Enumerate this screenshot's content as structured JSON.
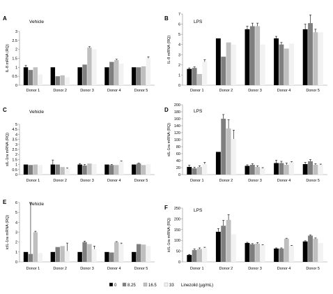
{
  "figure": {
    "legend": {
      "position": "bottom",
      "title": "Linezolid (µg/mL)",
      "entries": [
        {
          "label": "0",
          "color": "#000000"
        },
        {
          "label": "8.25",
          "color": "#7f7f7f"
        },
        {
          "label": "16.5",
          "color": "#bfbfbf"
        },
        {
          "label": "33",
          "color": "#f2f2f2"
        }
      ]
    }
  },
  "chart_data": [
    {
      "panel": "A",
      "type": "bar",
      "title": "Vehicle",
      "xlabel": "",
      "ylabel": "IL-8 mRNA (RQ)",
      "ylim": [
        0,
        3
      ],
      "yticks": [
        0,
        0.5,
        1,
        1.5,
        2,
        2.5,
        3
      ],
      "grid": false,
      "categories": [
        "Donor 1",
        "Donor 2",
        "Donor 3",
        "Donor 4",
        "Donor 5"
      ],
      "series": [
        {
          "name": "0",
          "values": [
            1.0,
            1.0,
            1.0,
            1.0,
            1.0
          ],
          "errors": [
            0.1,
            0,
            0,
            0,
            0
          ]
        },
        {
          "name": "8.25",
          "values": [
            0.85,
            0.5,
            1.15,
            1.3,
            1.0
          ],
          "errors": [
            0,
            0,
            0,
            0,
            0
          ]
        },
        {
          "name": "16.5",
          "values": [
            1.0,
            0.55,
            2.1,
            1.4,
            1.05
          ],
          "errors": [
            0,
            0,
            0.05,
            0.05,
            0
          ]
        },
        {
          "name": "33",
          "values": [
            0.6,
            0.45,
            2.0,
            1.2,
            1.5
          ],
          "errors": [
            0,
            0,
            0,
            0,
            0.08
          ]
        }
      ]
    },
    {
      "panel": "B",
      "type": "bar",
      "title": "LPS",
      "xlabel": "",
      "ylabel": "IL-8 mRNA (RQ)",
      "ylim": [
        0,
        7
      ],
      "yticks": [
        0,
        1,
        2,
        3,
        4,
        5,
        6,
        7
      ],
      "grid": false,
      "categories": [
        "Donor 1",
        "Donor 2",
        "Donor 3",
        "Donor 4",
        "Donor 5"
      ],
      "series": [
        {
          "name": "0",
          "values": [
            1.6,
            4.6,
            5.5,
            4.6,
            5.5
          ],
          "errors": [
            0.1,
            0,
            0.3,
            0.2,
            0.5
          ]
        },
        {
          "name": "8.25",
          "values": [
            1.7,
            2.8,
            5.8,
            4.0,
            6.1
          ],
          "errors": [
            0.1,
            0,
            0.3,
            0.2,
            0.8
          ]
        },
        {
          "name": "16.5",
          "values": [
            1.1,
            4.2,
            5.8,
            3.6,
            5.2
          ],
          "errors": [
            0,
            0,
            0.3,
            0,
            0.3
          ]
        },
        {
          "name": "33",
          "values": [
            2.3,
            4.0,
            4.0,
            4.1,
            5.2
          ],
          "errors": [
            0.2,
            0,
            0,
            0,
            0
          ]
        }
      ]
    },
    {
      "panel": "C",
      "type": "bar",
      "title": "Vehicle",
      "xlabel": "",
      "ylabel": "sIL-1ra mRNA (RQ)",
      "ylim": [
        0,
        5
      ],
      "yticks": [
        0,
        0.5,
        1,
        1.5,
        2,
        2.5,
        3,
        3.5,
        4,
        4.5,
        5
      ],
      "grid": false,
      "categories": [
        "Donor 1",
        "Donor 2",
        "Donor 3",
        "Donor 4",
        "Donor 5"
      ],
      "series": [
        {
          "name": "0",
          "values": [
            1.0,
            1.0,
            1.0,
            1.0,
            1.0
          ],
          "errors": [
            0,
            0.45,
            0.1,
            0,
            0
          ]
        },
        {
          "name": "8.25",
          "values": [
            0.95,
            1.0,
            0.9,
            0.95,
            1.1
          ],
          "errors": [
            0,
            0,
            0.1,
            0.05,
            0.05
          ]
        },
        {
          "name": "16.5",
          "values": [
            1.0,
            0.75,
            1.1,
            0.95,
            0.95
          ],
          "errors": [
            0,
            0,
            0,
            0,
            0
          ]
        },
        {
          "name": "33",
          "values": [
            0.95,
            0.6,
            1.05,
            1.3,
            1.05
          ],
          "errors": [
            0,
            0.05,
            0,
            0.05,
            0
          ]
        }
      ]
    },
    {
      "panel": "D",
      "type": "bar",
      "title": "LPS",
      "xlabel": "",
      "ylabel": "sIL-1ra mRNA (RQ)",
      "ylim": [
        0,
        200
      ],
      "yticks": [
        0,
        20,
        40,
        60,
        80,
        100,
        120,
        140,
        160,
        180,
        200
      ],
      "grid": false,
      "categories": [
        "Donor 1",
        "Donor 2",
        "Donor 3",
        "Donor 4",
        "Donor 5"
      ],
      "series": [
        {
          "name": "0",
          "values": [
            22,
            65,
            25,
            33,
            30
          ],
          "errors": [
            5,
            0,
            3,
            8,
            5
          ]
        },
        {
          "name": "8.25",
          "values": [
            18,
            160,
            28,
            33,
            38
          ],
          "errors": [
            3,
            12,
            3,
            5,
            5
          ]
        },
        {
          "name": "16.5",
          "values": [
            22,
            132,
            22,
            28,
            28
          ],
          "errors": [
            3,
            25,
            3,
            5,
            3
          ]
        },
        {
          "name": "33",
          "values": [
            30,
            102,
            18,
            35,
            28
          ],
          "errors": [
            5,
            25,
            2,
            2,
            2
          ]
        }
      ]
    },
    {
      "panel": "E",
      "type": "bar",
      "title": "Vehicle",
      "xlabel": "",
      "ylabel": "icIL-1ra mRNA (RQ)",
      "ylim": [
        0,
        6
      ],
      "yticks": [
        0,
        1,
        2,
        3,
        4,
        5,
        6
      ],
      "grid": false,
      "categories": [
        "Donor 1",
        "Donor 2",
        "Donor 3",
        "Donor 4",
        "Donor 5"
      ],
      "series": [
        {
          "name": "0",
          "values": [
            1.0,
            1.0,
            1.0,
            1.0,
            1.0
          ],
          "errors": [
            0,
            0,
            0,
            0,
            0
          ]
        },
        {
          "name": "8.25",
          "values": [
            0.8,
            1.5,
            2.0,
            0.95,
            1.8
          ],
          "errors": [
            5.2,
            0,
            0.1,
            0,
            0
          ]
        },
        {
          "name": "16.5",
          "values": [
            3.0,
            1.6,
            1.8,
            2.0,
            1.75
          ],
          "errors": [
            0.1,
            0,
            0,
            0.05,
            0
          ]
        },
        {
          "name": "33",
          "values": [
            0.9,
            1.1,
            1.3,
            1.8,
            1.6
          ],
          "errors": [
            0,
            0.8,
            0.3,
            0.1,
            0
          ]
        }
      ]
    },
    {
      "panel": "F",
      "type": "bar",
      "title": "LPS",
      "xlabel": "",
      "ylabel": "icIL-1ra mRNA (RQ)",
      "ylim": [
        0,
        250
      ],
      "yticks": [
        0,
        50,
        100,
        150,
        200,
        250
      ],
      "grid": false,
      "categories": [
        "Donor 1",
        "Donor 2",
        "Donor 3",
        "Donor 4",
        "Donor 5"
      ],
      "series": [
        {
          "name": "0",
          "values": [
            32,
            140,
            88,
            62,
            95
          ],
          "errors": [
            3,
            15,
            3,
            3,
            3
          ]
        },
        {
          "name": "8.25",
          "values": [
            55,
            168,
            82,
            62,
            122
          ],
          "errors": [
            5,
            25,
            3,
            3,
            3
          ]
        },
        {
          "name": "16.5",
          "values": [
            60,
            195,
            85,
            108,
            108
          ],
          "errors": [
            5,
            25,
            5,
            2,
            3
          ]
        },
        {
          "name": "33",
          "values": [
            65,
            128,
            78,
            75,
            88
          ],
          "errors": [
            3,
            0,
            2,
            2,
            0
          ]
        }
      ]
    }
  ]
}
